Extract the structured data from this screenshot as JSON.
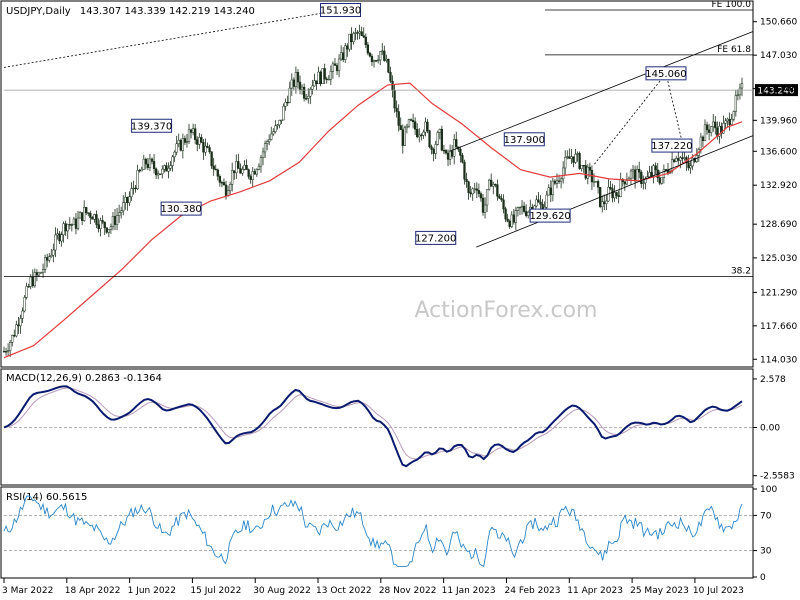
{
  "chart_data": {
    "type": "candlestick",
    "header": {
      "title": "USDJPY,Daily",
      "ohlc": "143.307 143.339 142.219 143.240"
    },
    "watermark": "ActionForex.com",
    "price_axis": {
      "ticks": [
        "150.660",
        "147.030",
        "143.400",
        "139.960",
        "136.600",
        "132.920",
        "128.690",
        "125.030",
        "121.290",
        "117.660",
        "114.030"
      ],
      "tick_values": [
        150.66,
        147.03,
        143.4,
        139.96,
        136.6,
        132.92,
        128.69,
        125.03,
        121.29,
        117.66,
        114.03
      ],
      "range": [
        113.3,
        152.8
      ],
      "current": {
        "label": "143.240",
        "value": 143.24
      }
    },
    "x_axis": {
      "labels": [
        "3 Mar 2022",
        "18 Apr 2022",
        "1 Jun 2022",
        "15 Jul 2022",
        "30 Aug 2022",
        "13 Oct 2022",
        "28 Nov 2022",
        "11 Jan 2023",
        "24 Feb 2023",
        "11 Apr 2023",
        "25 May 2023",
        "10 Jul 2023"
      ],
      "label_pos": [
        0.0,
        0.0851,
        0.1702,
        0.2553,
        0.3404,
        0.4255,
        0.5106,
        0.5957,
        0.6809,
        0.766,
        0.8511,
        0.9362
      ]
    },
    "close_path": [
      [
        0.0,
        114.9
      ],
      [
        0.012,
        116.5
      ],
      [
        0.024,
        119.5
      ],
      [
        0.036,
        122.5
      ],
      [
        0.048,
        123.2
      ],
      [
        0.06,
        125.0
      ],
      [
        0.072,
        127.2
      ],
      [
        0.084,
        128.8
      ],
      [
        0.096,
        128.6
      ],
      [
        0.108,
        130.0
      ],
      [
        0.12,
        129.8
      ],
      [
        0.132,
        128.6
      ],
      [
        0.144,
        128.4
      ],
      [
        0.156,
        130.0
      ],
      [
        0.168,
        131.2
      ],
      [
        0.18,
        133.6
      ],
      [
        0.192,
        135.4
      ],
      [
        0.204,
        134.8
      ],
      [
        0.216,
        134.2
      ],
      [
        0.228,
        136.2
      ],
      [
        0.24,
        137.4
      ],
      [
        0.252,
        138.6
      ],
      [
        0.264,
        137.8
      ],
      [
        0.276,
        136.4
      ],
      [
        0.288,
        134.2
      ],
      [
        0.3,
        132.4
      ],
      [
        0.312,
        134.8
      ],
      [
        0.324,
        134.4
      ],
      [
        0.336,
        134.2
      ],
      [
        0.348,
        136.0
      ],
      [
        0.36,
        138.4
      ],
      [
        0.372,
        139.2
      ],
      [
        0.384,
        142.6
      ],
      [
        0.396,
        144.6
      ],
      [
        0.408,
        142.8
      ],
      [
        0.42,
        144.4
      ],
      [
        0.432,
        144.8
      ],
      [
        0.444,
        145.2
      ],
      [
        0.456,
        146.4
      ],
      [
        0.468,
        148.6
      ],
      [
        0.48,
        149.4
      ],
      [
        0.492,
        148.0
      ],
      [
        0.5,
        146.6
      ],
      [
        0.51,
        147.4
      ],
      [
        0.52,
        145.6
      ],
      [
        0.53,
        141.2
      ],
      [
        0.54,
        137.8
      ],
      [
        0.55,
        139.6
      ],
      [
        0.56,
        138.8
      ],
      [
        0.57,
        139.4
      ],
      [
        0.58,
        136.8
      ],
      [
        0.59,
        138.4
      ],
      [
        0.6,
        135.4
      ],
      [
        0.61,
        137.2
      ],
      [
        0.62,
        135.8
      ],
      [
        0.63,
        131.6
      ],
      [
        0.64,
        133.2
      ],
      [
        0.65,
        130.2
      ],
      [
        0.66,
        133.6
      ],
      [
        0.67,
        131.8
      ],
      [
        0.68,
        129.6
      ],
      [
        0.69,
        128.8
      ],
      [
        0.7,
        130.4
      ],
      [
        0.71,
        130.2
      ],
      [
        0.72,
        131.2
      ],
      [
        0.73,
        130.4
      ],
      [
        0.74,
        132.4
      ],
      [
        0.75,
        133.6
      ],
      [
        0.76,
        135.2
      ],
      [
        0.77,
        136.2
      ],
      [
        0.78,
        135.4
      ],
      [
        0.79,
        134.2
      ],
      [
        0.8,
        133.4
      ],
      [
        0.81,
        130.6
      ],
      [
        0.82,
        132.2
      ],
      [
        0.83,
        132.0
      ],
      [
        0.84,
        133.6
      ],
      [
        0.85,
        134.2
      ],
      [
        0.86,
        133.8
      ],
      [
        0.87,
        133.4
      ],
      [
        0.88,
        134.4
      ],
      [
        0.89,
        133.6
      ],
      [
        0.9,
        134.8
      ],
      [
        0.91,
        136.4
      ],
      [
        0.92,
        135.6
      ],
      [
        0.93,
        134.6
      ],
      [
        0.94,
        137.2
      ],
      [
        0.95,
        138.8
      ],
      [
        0.96,
        139.4
      ],
      [
        0.97,
        138.8
      ],
      [
        0.98,
        139.6
      ],
      [
        0.99,
        141.6
      ],
      [
        1.0,
        143.24
      ]
    ],
    "ma_path": [
      [
        0.0,
        114.2
      ],
      [
        0.04,
        115.5
      ],
      [
        0.08,
        118.2
      ],
      [
        0.12,
        121.0
      ],
      [
        0.16,
        123.8
      ],
      [
        0.2,
        127.0
      ],
      [
        0.24,
        129.6
      ],
      [
        0.28,
        131.2
      ],
      [
        0.32,
        132.2
      ],
      [
        0.36,
        133.4
      ],
      [
        0.4,
        135.4
      ],
      [
        0.44,
        138.8
      ],
      [
        0.48,
        141.6
      ],
      [
        0.52,
        143.8
      ],
      [
        0.55,
        144.0
      ],
      [
        0.58,
        141.8
      ],
      [
        0.62,
        139.6
      ],
      [
        0.66,
        137.0
      ],
      [
        0.7,
        134.6
      ],
      [
        0.74,
        133.8
      ],
      [
        0.78,
        134.2
      ],
      [
        0.82,
        133.6
      ],
      [
        0.86,
        133.4
      ],
      [
        0.9,
        134.2
      ],
      [
        0.94,
        136.4
      ],
      [
        0.98,
        139.2
      ],
      [
        1.0,
        139.8
      ]
    ],
    "annotations": [
      {
        "label": "151.930",
        "x": 0.456,
        "price": 151.93
      },
      {
        "label": "139.370",
        "x": 0.2,
        "price": 139.37
      },
      {
        "label": "130.380",
        "x": 0.24,
        "price": 130.38
      },
      {
        "label": "127.200",
        "x": 0.585,
        "price": 127.2
      },
      {
        "label": "137.900",
        "x": 0.705,
        "price": 137.9
      },
      {
        "label": "129.620",
        "x": 0.74,
        "price": 129.62
      },
      {
        "label": "145.060",
        "x": 0.897,
        "price": 145.06
      },
      {
        "label": "137.220",
        "x": 0.905,
        "price": 137.22
      }
    ],
    "levels": [
      {
        "label": "FE 100.0",
        "price": 151.93,
        "x_start": 0.733
      },
      {
        "label": "FE 61.8",
        "price": 147.06,
        "x_start": 0.733
      },
      {
        "label": "38.2",
        "price": 123.0,
        "x_start": 0.0
      }
    ],
    "macd": {
      "label": "MACD(12,26,9) 0.2863 -0.1364",
      "ticks": [
        "2.578",
        "0.00",
        "-2.5583"
      ],
      "tick_values": [
        2.578,
        0.0,
        -2.5583
      ],
      "range": [
        -3.0,
        3.0
      ]
    },
    "rsi": {
      "label": "RSI(14) 60.5615",
      "ticks": [
        "100",
        "70",
        "30",
        "0"
      ],
      "tick_values": [
        100,
        70,
        30,
        0
      ],
      "range": [
        0,
        100
      ]
    }
  }
}
